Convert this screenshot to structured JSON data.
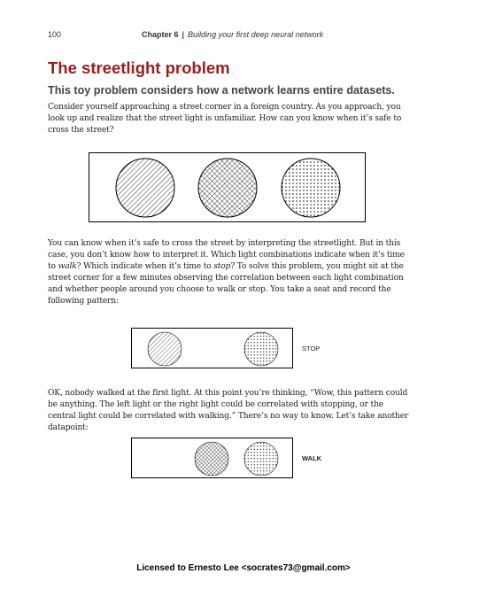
{
  "header": {
    "page_number": "100",
    "chapter": "Chapter 6",
    "chapter_subtitle": "Building your first deep neural network"
  },
  "section": {
    "title": "The streetlight problem",
    "subtitle": "This toy problem considers how a network learns entire datasets."
  },
  "paragraphs": {
    "p1": "Consider yourself approaching a street corner in a foreign country. As you approach, you look up and realize that the street light is unfamiliar. How can you know when it’s safe to cross the street?",
    "p2": {
      "t1": "You can know when it’s safe to cross the street by interpreting the streetlight. But in this case, you don’t know how to interpret it. Which light combinations indicate when it’s time to ",
      "em1": "walk",
      "t2": "? Which indicate when it’s time to ",
      "em2": "stop",
      "t3": "? To solve this problem, you might sit at the street corner for a few minutes observing the correlation between each light combination and whether people around you choose to walk or stop. You take a seat and record the following pattern:"
    },
    "p3": "OK, nobody walked at the first light. At this point you’re thinking, “Wow, this pattern could be anything. The left light or the right light could be correlated with stopping, or the central light could be correlated with walking.” There’s no way to know. Let’s take another datapoint:"
  },
  "figures": {
    "streetlight": {
      "lights": [
        {
          "pattern": "diagonal-hatch"
        },
        {
          "pattern": "crosshatch"
        },
        {
          "pattern": "dots"
        }
      ]
    },
    "datapoint1": {
      "lights_on": [
        1,
        0,
        1
      ],
      "label": "STOP"
    },
    "datapoint2": {
      "lights_on": [
        0,
        1,
        1
      ],
      "label": "WALK"
    }
  },
  "footer": {
    "license": "Licensed to Ernesto Lee <socrates73@gmail.com>"
  }
}
